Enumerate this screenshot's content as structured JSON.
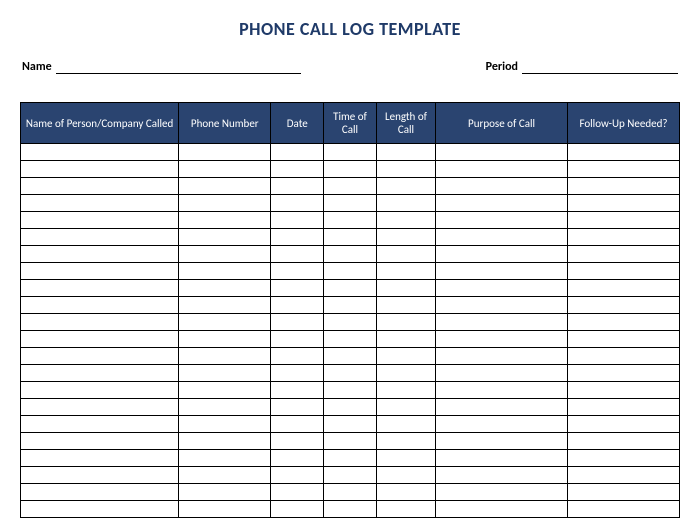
{
  "title": "PHONE CALL LOG TEMPLATE",
  "meta": {
    "name_label": "Name",
    "name_value": "",
    "period_label": "Period",
    "period_value": ""
  },
  "table": {
    "columns": [
      {
        "key": "name",
        "label": "Name of Person/Company Called",
        "width": "24%"
      },
      {
        "key": "phone",
        "label": "Phone Number",
        "width": "14%"
      },
      {
        "key": "date",
        "label": "Date",
        "width": "8%"
      },
      {
        "key": "time",
        "label": "Time of Call",
        "width": "8%"
      },
      {
        "key": "length",
        "label": "Length of Call",
        "width": "9%"
      },
      {
        "key": "purpose",
        "label": "Purpose of Call",
        "width": "20%"
      },
      {
        "key": "followup",
        "label": "Follow-Up Needed?",
        "width": "17%"
      }
    ],
    "row_count": 22,
    "rows": [
      [
        "",
        "",
        "",
        "",
        "",
        "",
        ""
      ],
      [
        "",
        "",
        "",
        "",
        "",
        "",
        ""
      ],
      [
        "",
        "",
        "",
        "",
        "",
        "",
        ""
      ],
      [
        "",
        "",
        "",
        "",
        "",
        "",
        ""
      ],
      [
        "",
        "",
        "",
        "",
        "",
        "",
        ""
      ],
      [
        "",
        "",
        "",
        "",
        "",
        "",
        ""
      ],
      [
        "",
        "",
        "",
        "",
        "",
        "",
        ""
      ],
      [
        "",
        "",
        "",
        "",
        "",
        "",
        ""
      ],
      [
        "",
        "",
        "",
        "",
        "",
        "",
        ""
      ],
      [
        "",
        "",
        "",
        "",
        "",
        "",
        ""
      ],
      [
        "",
        "",
        "",
        "",
        "",
        "",
        ""
      ],
      [
        "",
        "",
        "",
        "",
        "",
        "",
        ""
      ],
      [
        "",
        "",
        "",
        "",
        "",
        "",
        ""
      ],
      [
        "",
        "",
        "",
        "",
        "",
        "",
        ""
      ],
      [
        "",
        "",
        "",
        "",
        "",
        "",
        ""
      ],
      [
        "",
        "",
        "",
        "",
        "",
        "",
        ""
      ],
      [
        "",
        "",
        "",
        "",
        "",
        "",
        ""
      ],
      [
        "",
        "",
        "",
        "",
        "",
        "",
        ""
      ],
      [
        "",
        "",
        "",
        "",
        "",
        "",
        ""
      ],
      [
        "",
        "",
        "",
        "",
        "",
        "",
        ""
      ],
      [
        "",
        "",
        "",
        "",
        "",
        "",
        ""
      ],
      [
        "",
        "",
        "",
        "",
        "",
        "",
        ""
      ]
    ]
  },
  "colors": {
    "title_color": "#1f3a68",
    "header_bg": "#2a4470",
    "header_text": "#ffffff",
    "border": "#000000",
    "background": "#ffffff"
  },
  "typography": {
    "title_fontsize": 18,
    "header_fontsize": 11,
    "meta_fontsize": 12,
    "font_family": "Calibri"
  }
}
